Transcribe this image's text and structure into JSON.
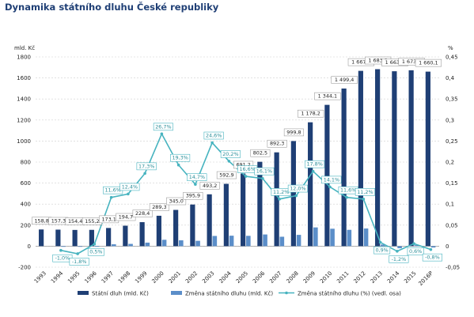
{
  "title": "Dynamika státního dluhu České republiky",
  "colors": {
    "debt": "#1f3f75",
    "change": "#5b8ec9",
    "line": "#46b3bf",
    "grid": "#d0d0d0",
    "label_border": "#8c8c8c"
  },
  "chart_data": {
    "type": "bar",
    "categories": [
      "1993",
      "1994",
      "1995",
      "1996",
      "1997",
      "1998",
      "1999",
      "2000",
      "2001",
      "2002",
      "2003",
      "2004",
      "2005",
      "2006",
      "2007",
      "2008",
      "2009",
      "2010",
      "2011",
      "2012",
      "2013",
      "2014",
      "2015",
      "2016P"
    ],
    "y_left": {
      "unit": "mld. Kč",
      "ylim": [
        -200,
        1800
      ],
      "ticks": [
        "-200",
        "0",
        "200",
        "400",
        "600",
        "800",
        "1000",
        "1200",
        "1400",
        "1600",
        "1800"
      ]
    },
    "y_right": {
      "unit": "%",
      "ylim": [
        -0.05,
        0.45
      ],
      "ticks": [
        "-0,05",
        "0",
        "0,05",
        "0,1",
        "0,15",
        "0,2",
        "0,25",
        "0,3",
        "0,35",
        "0,4",
        "0,45"
      ]
    },
    "series": [
      {
        "name": "Státní dluh (mld. Kč)",
        "type": "bar",
        "values": [
          158.8,
          157.3,
          154.4,
          155.2,
          173.1,
          194.7,
          228.4,
          289.3,
          345.0,
          395.9,
          493.2,
          592.9,
          691.2,
          802.5,
          892.3,
          999.8,
          1178.2,
          1344.1,
          1499.4,
          1667.6,
          1683.3,
          1663.7,
          1673.0,
          1660.1
        ],
        "labels": [
          "158,8",
          "157,3",
          "154,4",
          "155,2",
          "173,1",
          "194,7",
          "228,4",
          "289,3",
          "345,0",
          "395,9",
          "493,2",
          "592,9",
          "691,2",
          "802,5",
          "892,3",
          "999,8",
          "1 178,2",
          "1 344,1",
          "1 499,4",
          "1 667,6",
          "1 683,3",
          "1 663,7",
          "1 673,0",
          "1 660,1"
        ]
      },
      {
        "name": "Změna státního dluhu (mld. Kč)",
        "type": "bar",
        "values": [
          null,
          -1.5,
          -2.9,
          0.8,
          17.9,
          21.6,
          33.7,
          60.9,
          55.7,
          50.9,
          97.3,
          99.7,
          98.3,
          111.3,
          89.8,
          107.5,
          178.4,
          165.9,
          155.3,
          168.2,
          15.7,
          -19.6,
          9.3,
          -12.9
        ]
      },
      {
        "name": "Změna státního dluhu (%) (vedl. osa)",
        "type": "line",
        "axis": "right",
        "values": [
          null,
          -0.01,
          -0.018,
          0.005,
          0.116,
          0.124,
          0.173,
          0.267,
          0.193,
          0.147,
          0.246,
          0.202,
          0.166,
          0.161,
          0.112,
          0.12,
          0.178,
          0.141,
          0.116,
          0.112,
          0.009,
          -0.012,
          0.006,
          -0.008
        ],
        "labels": [
          "",
          "-1,0%",
          "-1,8%",
          "0,5%",
          "11,6%",
          "12,4%",
          "17,3%",
          "26,7%",
          "19,3%",
          "14,7%",
          "24,6%",
          "20,2%",
          "16,6%",
          "16,1%",
          "11,2%",
          "12,0%",
          "17,8%",
          "14,1%",
          "11,6%",
          "11,2%",
          "0,9%",
          "-1,2%",
          "0,6%",
          "-0,8%"
        ]
      }
    ],
    "grid": true,
    "legend_position": "bottom"
  }
}
